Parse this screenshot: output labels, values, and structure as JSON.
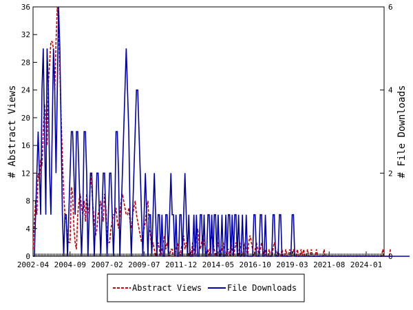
{
  "chart_data": {
    "type": "line",
    "title": "",
    "xlabel": "",
    "ylabel_left": "# Abstract Views",
    "ylabel_right": "# File Downloads",
    "x_tick_labels": [
      "2002-04",
      "2004-09",
      "2007-02",
      "2009-07",
      "2011-12",
      "2014-05",
      "2016-10",
      "2019-03",
      "2021-08",
      "2024-01"
    ],
    "y_left_ticks": [
      "0",
      "4",
      "8",
      "12",
      "16",
      "20",
      "24",
      "28",
      "32",
      "36"
    ],
    "y_right_ticks": [
      "0",
      "2",
      "4",
      "6"
    ],
    "ylim_left": [
      0,
      36
    ],
    "ylim_right": [
      0,
      6
    ],
    "x_start": "2002-04",
    "x_months_shown": 276,
    "legend_position": "bottom-center",
    "grid": false,
    "series": [
      {
        "name": "Abstract Views",
        "axis": "left",
        "color": "#cc0000",
        "style": "dashed",
        "values": [
          1,
          5,
          8,
          6,
          12,
          11,
          14,
          13,
          18,
          22,
          20,
          16,
          25,
          28,
          31,
          31,
          30,
          24,
          31,
          36,
          34,
          27,
          20,
          14,
          9,
          6,
          5,
          3,
          2,
          2,
          10,
          9,
          4,
          2,
          1,
          6,
          8,
          9,
          7,
          6,
          8,
          5,
          9,
          7,
          6,
          12,
          10,
          7,
          5,
          3,
          4,
          6,
          7,
          8,
          6,
          5,
          9,
          7,
          3,
          2,
          2,
          4,
          5,
          6,
          6,
          7,
          5,
          4,
          6,
          8,
          9,
          8,
          7,
          6,
          6,
          7,
          5,
          4,
          6,
          7,
          8,
          6,
          5,
          4,
          3,
          2,
          3,
          4,
          5,
          7,
          8,
          4,
          3,
          1,
          2,
          1,
          0,
          1,
          2,
          1,
          0,
          1,
          2,
          3,
          1,
          2,
          1,
          0,
          1,
          1,
          0,
          0,
          1,
          2,
          1,
          0,
          1,
          2,
          3,
          1,
          2,
          1,
          0,
          1,
          0,
          2,
          1,
          0,
          3,
          4,
          2,
          1,
          2,
          3,
          2,
          1,
          0,
          1,
          0,
          2,
          3,
          2,
          1,
          0,
          1,
          2,
          1,
          0,
          1,
          2,
          1,
          0,
          1,
          1,
          0,
          2,
          1,
          0,
          1,
          2,
          1,
          0,
          2,
          1,
          0,
          1,
          2,
          1,
          0,
          2,
          3,
          2,
          1,
          0,
          1,
          2,
          1,
          0,
          1,
          2,
          1,
          0,
          1,
          0,
          0,
          1,
          0,
          0,
          1,
          2,
          1,
          0,
          1,
          0,
          0,
          1,
          0,
          0,
          1,
          0,
          0,
          1,
          0,
          0,
          1,
          0,
          0,
          1,
          0,
          0,
          1,
          0,
          1,
          0,
          0,
          1,
          0,
          0,
          1,
          0,
          0,
          0,
          1,
          0,
          0,
          0,
          0,
          0,
          1,
          0,
          0,
          0,
          0,
          0,
          0,
          0,
          0,
          0,
          0,
          0,
          0,
          0,
          0,
          0,
          0,
          0,
          0,
          0,
          0,
          0,
          0,
          0,
          0,
          0,
          0,
          0,
          0,
          0,
          0,
          0,
          0,
          0,
          0,
          0,
          0,
          0,
          0,
          0,
          0,
          0,
          0,
          0,
          0,
          0,
          1,
          0,
          0,
          0,
          0,
          0,
          1
        ]
      },
      {
        "name": "File Downloads",
        "axis": "right",
        "color": "#0000aa",
        "style": "solid",
        "values": [
          0,
          0,
          1,
          2,
          3,
          2,
          1,
          4,
          5,
          3,
          1,
          5,
          4,
          2,
          1,
          3,
          5,
          4,
          2,
          4,
          6,
          5,
          3,
          1,
          0,
          1,
          1,
          0,
          1,
          2,
          3,
          3,
          2,
          1,
          3,
          3,
          2,
          1,
          0,
          1,
          3,
          3,
          2,
          0,
          1,
          2,
          2,
          1,
          0,
          1,
          2,
          2,
          1,
          0,
          1,
          2,
          2,
          1,
          0,
          1,
          2,
          2,
          1,
          0,
          1,
          3,
          3,
          2,
          0,
          1,
          2,
          3,
          4,
          5,
          4,
          3,
          1,
          0,
          1,
          2,
          3,
          4,
          4,
          3,
          2,
          1,
          0,
          1,
          2,
          1,
          0,
          1,
          1,
          0,
          1,
          2,
          1,
          0,
          1,
          1,
          0,
          1,
          0,
          0,
          1,
          1,
          0,
          1,
          2,
          1,
          1,
          0,
          1,
          0,
          0,
          1,
          1,
          0,
          1,
          2,
          1,
          0,
          1,
          0,
          0,
          0,
          1,
          0,
          1,
          0,
          0,
          1,
          1,
          0,
          1,
          0,
          0,
          1,
          1,
          0,
          1,
          0,
          1,
          1,
          0,
          1,
          0,
          0,
          1,
          0,
          0,
          1,
          0,
          1,
          1,
          0,
          1,
          0,
          1,
          1,
          0,
          1,
          0,
          0,
          1,
          0,
          0,
          1,
          0,
          0,
          0,
          0,
          0,
          1,
          1,
          0,
          0,
          0,
          1,
          1,
          0,
          0,
          1,
          0,
          0,
          0,
          0,
          0,
          1,
          1,
          0,
          0,
          0,
          1,
          1,
          0,
          0,
          0,
          0,
          0,
          0,
          0,
          0,
          1,
          1,
          0,
          0,
          0,
          0,
          0,
          0,
          0,
          0,
          0,
          0,
          0,
          0,
          0,
          0,
          0,
          0,
          0,
          0,
          0,
          0,
          0,
          0,
          0,
          0,
          0,
          0,
          0,
          0,
          0,
          0,
          0,
          0,
          0,
          0,
          0,
          0,
          0,
          0,
          0,
          0,
          0,
          0,
          0,
          0,
          0,
          0,
          0,
          0,
          0,
          0,
          0,
          0,
          0,
          0,
          0,
          0,
          0,
          0,
          0,
          0,
          0,
          0,
          0,
          0,
          0,
          0,
          0,
          0,
          0,
          0,
          0,
          0,
          0,
          0,
          0,
          0,
          0,
          0,
          0,
          0,
          0,
          0,
          0,
          0,
          0,
          0,
          0,
          0,
          0,
          0,
          0
        ]
      }
    ]
  }
}
